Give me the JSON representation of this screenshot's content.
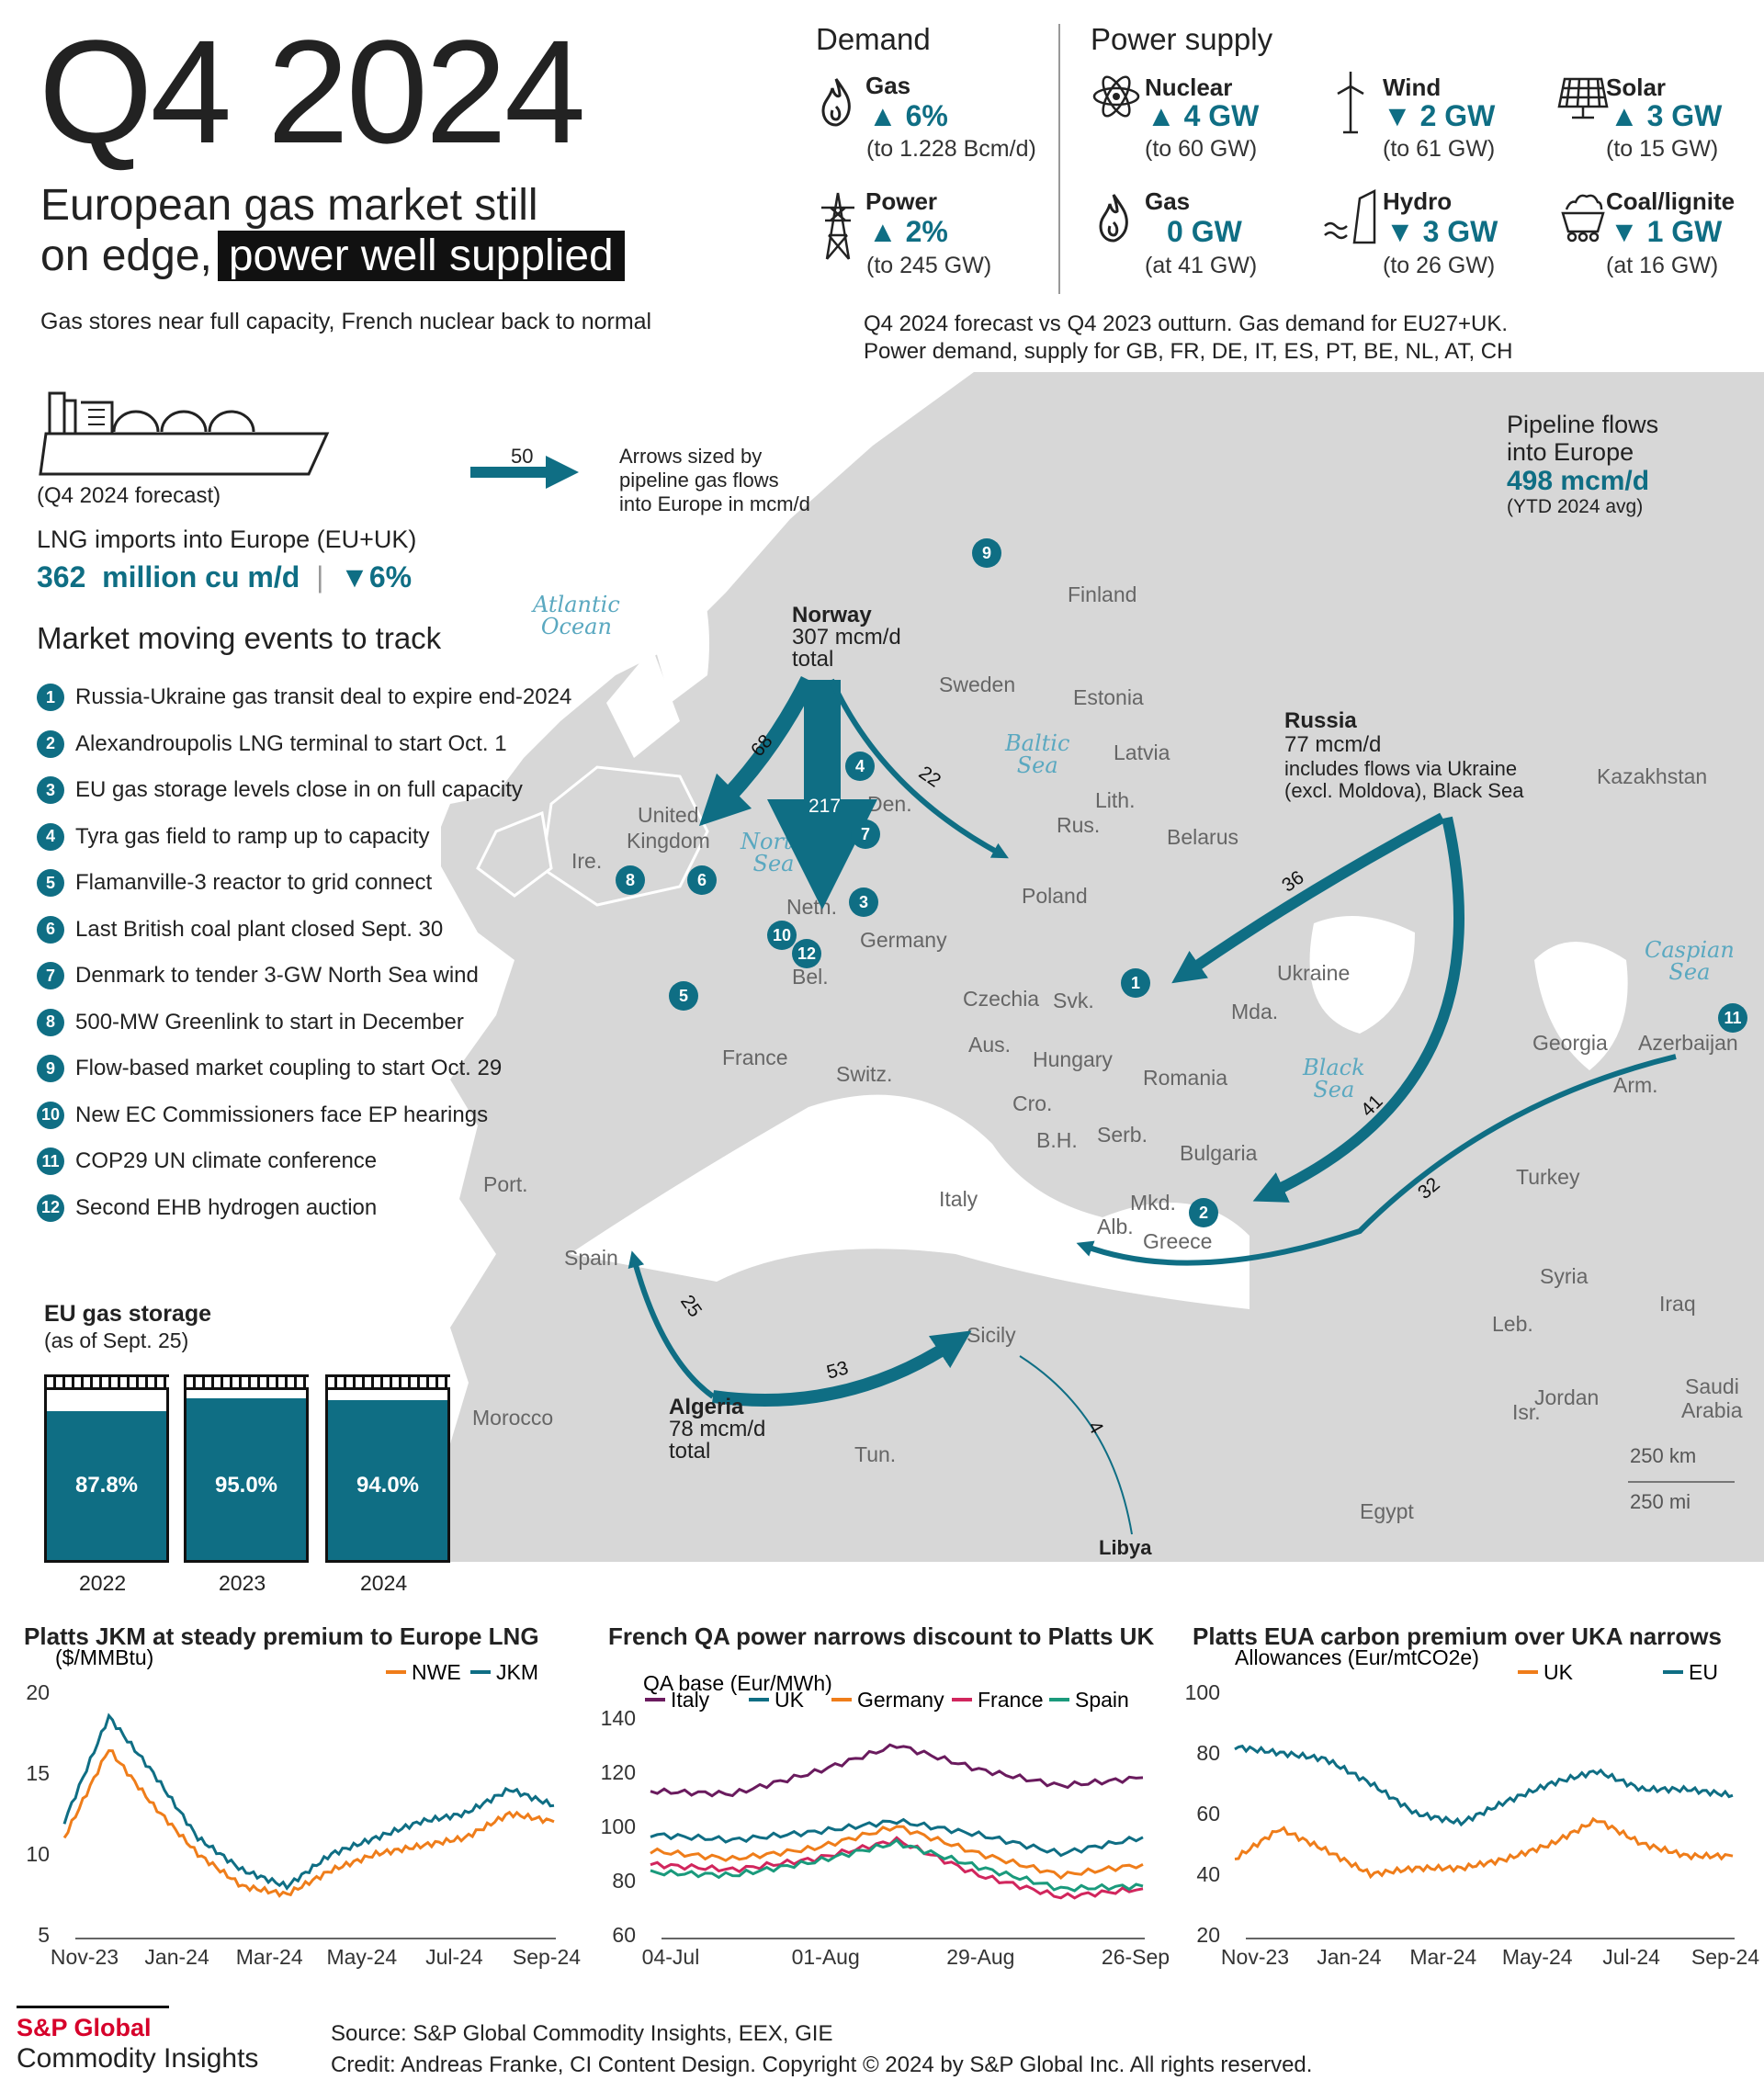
{
  "header": {
    "title": "Q4 2024",
    "subtitle_line1": "European gas market still",
    "subtitle_line2_plain": "on edge,",
    "subtitle_line2_highlight": "power well supplied",
    "tagline": "Gas stores near full capacity, French nuclear back to normal"
  },
  "demand": {
    "heading": "Demand",
    "gas": {
      "label": "Gas",
      "value": "▲ 6%",
      "note": "(to 1.228 Bcm/d)",
      "icon": "flame-icon"
    },
    "power": {
      "label": "Power",
      "value": "▲ 2%",
      "note": "(to 245 GW)",
      "icon": "pylon-icon"
    }
  },
  "supply": {
    "heading": "Power supply",
    "items": [
      {
        "label": "Nuclear",
        "value": "▲ 4 GW",
        "note": "(to 60 GW)",
        "icon": "atom-icon"
      },
      {
        "label": "Wind",
        "value": "▼ 2 GW",
        "note": "(to 61 GW)",
        "icon": "wind-turbine-icon"
      },
      {
        "label": "Solar",
        "value": "▲ 3 GW",
        "note": "(to 15 GW)",
        "icon": "solar-panel-icon"
      },
      {
        "label": "Gas",
        "value": "0 GW",
        "note": "(at 41 GW)",
        "icon": "flame-icon"
      },
      {
        "label": "Hydro",
        "value": "▼ 3 GW",
        "note": "(to 26 GW)",
        "icon": "dam-icon"
      },
      {
        "label": "Coal/lignite",
        "value": "▼ 1 GW",
        "note": "(at 16 GW)",
        "icon": "coal-cart-icon"
      }
    ],
    "footnote_line1": "Q4 2024 forecast vs Q4 2023 outturn. Gas demand for EU27+UK.",
    "footnote_line2": "Power demand, supply for GB, FR, DE, IT, ES, PT, BE, NL, AT, CH"
  },
  "lng": {
    "forecast_note": "(Q4 2024 forecast)",
    "label": "LNG imports into Europe (EU+UK)",
    "value": "362",
    "unit": "million cu m/d",
    "change": "▼6%",
    "icon": "lng-ship-icon"
  },
  "arrow_legend": {
    "value": "50",
    "text_line1": "Arrows sized by",
    "text_line2": "pipeline gas flows",
    "text_line3": "into Europe in mcm/d"
  },
  "pipeline_total": {
    "line1": "Pipeline flows",
    "line2": "into Europe",
    "value": "498 mcm/d",
    "note": "(YTD 2024 avg)"
  },
  "events": {
    "heading": "Market moving events to track",
    "items": [
      {
        "n": "1",
        "text": "Russia-Ukraine gas transit deal to expire end-2024"
      },
      {
        "n": "2",
        "text": "Alexandroupolis LNG terminal to start Oct. 1"
      },
      {
        "n": "3",
        "text": "EU gas storage levels close in on full capacity"
      },
      {
        "n": "4",
        "text": "Tyra gas field to ramp up to capacity"
      },
      {
        "n": "5",
        "text": "Flamanville-3 reactor to grid connect"
      },
      {
        "n": "6",
        "text": "Last British coal plant closed Sept. 30"
      },
      {
        "n": "7",
        "text": "Denmark to tender 3-GW North Sea wind"
      },
      {
        "n": "8",
        "text": "500-MW Greenlink to start in December"
      },
      {
        "n": "9",
        "text": "Flow-based market coupling to start Oct. 29"
      },
      {
        "n": "10",
        "text": "New EC Commissioners face EP hearings"
      },
      {
        "n": "11",
        "text": "COP29 UN climate conference"
      },
      {
        "n": "12",
        "text": "Second EHB hydrogen auction"
      }
    ]
  },
  "map": {
    "seas": {
      "atlantic1": "Atlantic",
      "atlantic2": "Ocean",
      "north1": "North",
      "north2": "Sea",
      "baltic1": "Baltic",
      "baltic2": "Sea",
      "black1": "Black",
      "black2": "Sea",
      "caspian1": "Caspian",
      "caspian2": "Sea"
    },
    "countries": {
      "finland": "Finland",
      "sweden": "Sweden",
      "estonia": "Estonia",
      "latvia": "Latvia",
      "lith": "Lith.",
      "rus": "Rus.",
      "belarus": "Belarus",
      "kazakhstan": "Kazakhstan",
      "uk1": "United",
      "uk2": "Kingdom",
      "ire": "Ire.",
      "den": "Den.",
      "poland": "Poland",
      "neth": "Neth.",
      "germany": "Germany",
      "bel": "Bel.",
      "ukraine": "Ukraine",
      "czechia": "Czechia",
      "svk": "Svk.",
      "mda": "Mda.",
      "france": "France",
      "aus": "Aus.",
      "hungary": "Hungary",
      "romania": "Romania",
      "switz": "Switz.",
      "cro": "Cro.",
      "bh": "B.H.",
      "serb": "Serb.",
      "bulgaria": "Bulgaria",
      "georgia": "Georgia",
      "azerbaijan": "Azerbaijan",
      "arm": "Arm.",
      "port": "Port.",
      "italy": "Italy",
      "mkd": "Mkd.",
      "alb": "Alb.",
      "greece": "Greece",
      "turkey": "Turkey",
      "spain": "Spain",
      "syria": "Syria",
      "iraq": "Iraq",
      "sicily": "Sicily",
      "leb": "Leb.",
      "isr": "Isr.",
      "jordan": "Jordan",
      "saudi1": "Saudi",
      "saudi2": "Arabia",
      "morocco": "Morocco",
      "tun": "Tun.",
      "egypt": "Egypt"
    },
    "norway": {
      "name": "Norway",
      "value": "307 mcm/d",
      "total": "total"
    },
    "russia": {
      "name": "Russia",
      "value": "77 mcm/d",
      "note1": "includes flows via Ukraine",
      "note2": "(excl. Moldova), Black Sea"
    },
    "algeria": {
      "name": "Algeria",
      "value": "78 mcm/d",
      "total": "total"
    },
    "libya": "Libya",
    "flows": {
      "no_uk": "68",
      "no_main": "217",
      "no_pol": "22",
      "ru_ukr": "36",
      "ru_bs": "41",
      "az": "32",
      "alg_sp": "25",
      "alg_it": "53",
      "lib": "4"
    },
    "scale": {
      "km": "250 km",
      "mi": "250 mi"
    }
  },
  "storage": {
    "title": "EU gas storage",
    "subtitle": "(as of Sept. 25)",
    "bars": [
      {
        "year": "2022",
        "pct_label": "87.8%",
        "fill": 0.878
      },
      {
        "year": "2023",
        "pct_label": "95.0%",
        "fill": 0.95
      },
      {
        "year": "2024",
        "pct_label": "94.0%",
        "fill": 0.94
      }
    ]
  },
  "chart_data": [
    {
      "type": "line",
      "title": "Platts JKM at steady premium to Europe LNG",
      "ylabel": "($/MMBtu)",
      "ylim": [
        5,
        20
      ],
      "yticks": [
        "20",
        "15",
        "10",
        "5"
      ],
      "xticks": [
        "Nov-23",
        "Jan-24",
        "Mar-24",
        "May-24",
        "Jul-24",
        "Sep-24"
      ],
      "x": [
        "Oct-23",
        "Nov-23",
        "Dec-23",
        "Jan-24",
        "Feb-24",
        "Mar-24",
        "Apr-24",
        "May-24",
        "Jun-24",
        "Jul-24",
        "Aug-24",
        "Sep-24"
      ],
      "series": [
        {
          "name": "NWE",
          "color": "#ef7d1a",
          "values": [
            11,
            16.5,
            13,
            10,
            8,
            7.5,
            9,
            10,
            10.5,
            11,
            12.5,
            12
          ]
        },
        {
          "name": "JKM",
          "color": "#0f6e84",
          "values": [
            12,
            18.5,
            15,
            11,
            9,
            8,
            10,
            11,
            12,
            12.5,
            14,
            13
          ]
        }
      ]
    },
    {
      "type": "line",
      "title": "French QA power narrows discount to Platts UK",
      "ylabel": "QA base (Eur/MWh)",
      "ylim": [
        60,
        140
      ],
      "yticks": [
        "140",
        "120",
        "100",
        "80",
        "60"
      ],
      "xticks": [
        "04-Jul",
        "01-Aug",
        "29-Aug",
        "26-Sep"
      ],
      "x": [
        "04-Jul",
        "18-Jul",
        "01-Aug",
        "15-Aug",
        "29-Aug",
        "12-Sep",
        "26-Sep"
      ],
      "series": [
        {
          "name": "Italy",
          "color": "#6a1b5e",
          "values": [
            113,
            112,
            120,
            130,
            121,
            115,
            118
          ]
        },
        {
          "name": "UK",
          "color": "#0f6e84",
          "values": [
            97,
            95,
            98,
            102,
            97,
            90,
            96
          ]
        },
        {
          "name": "Germany",
          "color": "#ef7d1a",
          "values": [
            91,
            88,
            92,
            100,
            90,
            82,
            86
          ]
        },
        {
          "name": "France",
          "color": "#d1265d",
          "values": [
            86,
            84,
            88,
            95,
            82,
            74,
            77
          ]
        },
        {
          "name": "Spain",
          "color": "#1a9a7c",
          "values": [
            83,
            82,
            87,
            94,
            85,
            77,
            78
          ]
        }
      ]
    },
    {
      "type": "line",
      "title": "Platts EUA carbon premium over UKA narrows",
      "ylabel": "Allowances (Eur/mtCO2e)",
      "ylim": [
        20,
        100
      ],
      "yticks": [
        "100",
        "80",
        "60",
        "40",
        "20"
      ],
      "xticks": [
        "Nov-23",
        "Jan-24",
        "Mar-24",
        "May-24",
        "Jul-24",
        "Sep-24"
      ],
      "x": [
        "Oct-23",
        "Nov-23",
        "Dec-23",
        "Jan-24",
        "Feb-24",
        "Mar-24",
        "Apr-24",
        "May-24",
        "Jun-24",
        "Jul-24",
        "Aug-24",
        "Sep-24"
      ],
      "series": [
        {
          "name": "UK",
          "color": "#ef7d1a",
          "values": [
            45,
            55,
            48,
            40,
            42,
            42,
            45,
            50,
            58,
            50,
            46,
            46
          ]
        },
        {
          "name": "EU",
          "color": "#0f6e84",
          "values": [
            82,
            80,
            78,
            70,
            60,
            57,
            64,
            70,
            74,
            68,
            68,
            66
          ]
        }
      ]
    }
  ],
  "footer": {
    "brand1": "S&P Global",
    "brand2": "Commodity Insights",
    "source": "Source: S&P Global Commodity Insights, EEX, GIE",
    "credit": "Credit: Andreas Franke, CI Content Design.  Copyright © 2024 by S&P Global Inc. All rights reserved."
  }
}
